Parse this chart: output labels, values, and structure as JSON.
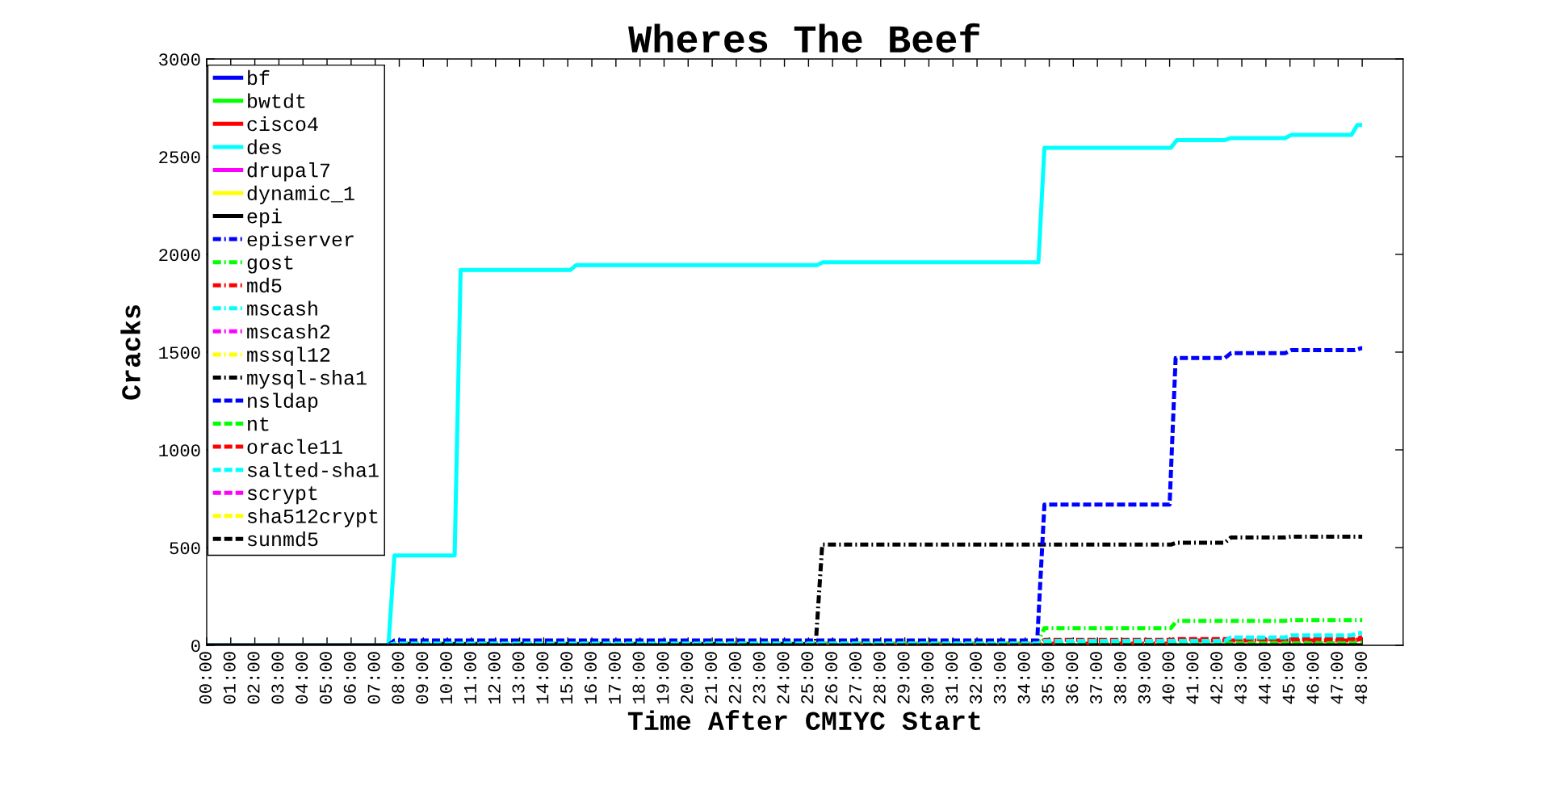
{
  "chart_data": {
    "type": "line",
    "title": "Wheres The Beef",
    "xlabel": "Time After CMIYC Start",
    "ylabel": "Cracks",
    "xlim": [
      0,
      49.7
    ],
    "ylim": [
      0,
      3000
    ],
    "yticks": [
      0,
      500,
      1000,
      1500,
      2000,
      2500,
      3000
    ],
    "xticks": [
      {
        "value": 0,
        "label": "00:00"
      },
      {
        "value": 1,
        "label": "01:00"
      },
      {
        "value": 2,
        "label": "02:00"
      },
      {
        "value": 3,
        "label": "03:00"
      },
      {
        "value": 4,
        "label": "04:00"
      },
      {
        "value": 5,
        "label": "05:00"
      },
      {
        "value": 6,
        "label": "06:00"
      },
      {
        "value": 7,
        "label": "07:00"
      },
      {
        "value": 8,
        "label": "08:00"
      },
      {
        "value": 9,
        "label": "09:00"
      },
      {
        "value": 10,
        "label": "10:00"
      },
      {
        "value": 11,
        "label": "11:00"
      },
      {
        "value": 12,
        "label": "12:00"
      },
      {
        "value": 13,
        "label": "13:00"
      },
      {
        "value": 14,
        "label": "14:00"
      },
      {
        "value": 15,
        "label": "15:00"
      },
      {
        "value": 16,
        "label": "16:00"
      },
      {
        "value": 17,
        "label": "17:00"
      },
      {
        "value": 18,
        "label": "18:00"
      },
      {
        "value": 19,
        "label": "19:00"
      },
      {
        "value": 20,
        "label": "20:00"
      },
      {
        "value": 21,
        "label": "21:00"
      },
      {
        "value": 22,
        "label": "22:00"
      },
      {
        "value": 23,
        "label": "23:00"
      },
      {
        "value": 24,
        "label": "24:00"
      },
      {
        "value": 25,
        "label": "25:00"
      },
      {
        "value": 26,
        "label": "26:00"
      },
      {
        "value": 27,
        "label": "27:00"
      },
      {
        "value": 28,
        "label": "28:00"
      },
      {
        "value": 29,
        "label": "29:00"
      },
      {
        "value": 30,
        "label": "30:00"
      },
      {
        "value": 31,
        "label": "31:00"
      },
      {
        "value": 32,
        "label": "32:00"
      },
      {
        "value": 33,
        "label": "33:00"
      },
      {
        "value": 34,
        "label": "34:00"
      },
      {
        "value": 35,
        "label": "35:00"
      },
      {
        "value": 36,
        "label": "36:00"
      },
      {
        "value": 37,
        "label": "37:00"
      },
      {
        "value": 38,
        "label": "38:00"
      },
      {
        "value": 39,
        "label": "39:00"
      },
      {
        "value": 40,
        "label": "40:00"
      },
      {
        "value": 41,
        "label": "41:00"
      },
      {
        "value": 42,
        "label": "42:00"
      },
      {
        "value": 43,
        "label": "43:00"
      },
      {
        "value": 44,
        "label": "44:00"
      },
      {
        "value": 45,
        "label": "45:00"
      },
      {
        "value": 46,
        "label": "46:00"
      },
      {
        "value": 47,
        "label": "47:00"
      },
      {
        "value": 48,
        "label": "48:00"
      }
    ],
    "legend": "top left",
    "series": [
      {
        "name": "bf",
        "color": "#0000ff",
        "line_style": "solid"
      },
      {
        "name": "bwtdt",
        "color": "#00ff00",
        "line_style": "solid"
      },
      {
        "name": "cisco4",
        "color": "#ff0000",
        "line_style": "solid"
      },
      {
        "name": "des",
        "color": "#00ffff",
        "line_style": "solid",
        "x": [
          0,
          7.55,
          7.8,
          10.3,
          10.55,
          15.1,
          15.35,
          25.35,
          25.6,
          34.55,
          34.8,
          40.05,
          40.3,
          42.3,
          42.55,
          44.8,
          45.05,
          47.55,
          47.8,
          48
        ],
        "values": [
          0,
          0,
          460,
          460,
          1920,
          1920,
          1945,
          1945,
          1960,
          1960,
          2545,
          2545,
          2585,
          2585,
          2595,
          2595,
          2611,
          2611,
          2662,
          2662
        ]
      },
      {
        "name": "drupal7",
        "color": "#ff00ff",
        "line_style": "solid"
      },
      {
        "name": "dynamic_1",
        "color": "#ffff00",
        "line_style": "solid"
      },
      {
        "name": "epi",
        "color": "#000000",
        "line_style": "solid",
        "x": [
          0,
          48
        ],
        "values": [
          0,
          0
        ]
      },
      {
        "name": "episerver",
        "color": "#0000ff",
        "line_style": "dashdot"
      },
      {
        "name": "gost",
        "color": "#00ff00",
        "line_style": "dashdot",
        "x": [
          7.55,
          7.8,
          34.5,
          34.8,
          40.05,
          40.3,
          44.8,
          45.05,
          48
        ],
        "values": [
          0,
          8,
          8,
          88,
          88,
          125,
          125,
          129,
          129
        ]
      },
      {
        "name": "md5",
        "color": "#ff0000",
        "line_style": "dashdot",
        "x": [
          7.55,
          34.5,
          34.8,
          40.05,
          40.3,
          47.7,
          48
        ],
        "values": [
          0,
          0,
          8,
          8,
          25,
          25,
          35
        ]
      },
      {
        "name": "mscash",
        "color": "#00ffff",
        "line_style": "dashdot"
      },
      {
        "name": "mscash2",
        "color": "#ff00ff",
        "line_style": "dashdot"
      },
      {
        "name": "mssql12",
        "color": "#ffff00",
        "line_style": "dashdot"
      },
      {
        "name": "mysql-sha1",
        "color": "#000000",
        "line_style": "dashdot",
        "x": [
          7.55,
          7.8,
          25.3,
          25.57,
          40.05,
          40.3,
          42.3,
          42.55,
          44.8,
          45.05,
          48
        ],
        "values": [
          0,
          5,
          5,
          515,
          515,
          525,
          525,
          552,
          552,
          556,
          556
        ]
      },
      {
        "name": "nsldap",
        "color": "#0000ff",
        "line_style": "dashed",
        "x": [
          7.55,
          7.8,
          34.5,
          34.8,
          40.0,
          40.25,
          42.3,
          42.55,
          44.8,
          45.05,
          47.7,
          47.95,
          48
        ],
        "values": [
          0,
          25,
          25,
          720,
          720,
          1470,
          1470,
          1495,
          1495,
          1510,
          1510,
          1520,
          1520
        ]
      },
      {
        "name": "nt",
        "color": "#00ff00",
        "line_style": "dashed",
        "x": [
          7.55,
          7.8,
          48
        ],
        "values": [
          0,
          8,
          10
        ]
      },
      {
        "name": "oracle11",
        "color": "#ff0000",
        "line_style": "dashed",
        "x": [
          7.55,
          34.5,
          34.8,
          40.05,
          40.3,
          47.7,
          48
        ],
        "values": [
          0,
          0,
          28,
          28,
          32,
          32,
          42
        ]
      },
      {
        "name": "salted-sha1",
        "color": "#00ffff",
        "line_style": "dashed",
        "x": [
          7.55,
          7.8,
          34.5,
          34.8,
          42.3,
          42.55,
          44.8,
          45.05,
          47.55,
          47.8,
          48
        ],
        "values": [
          0,
          8,
          8,
          23,
          23,
          40,
          40,
          50,
          50,
          63,
          63
        ]
      },
      {
        "name": "scrypt",
        "color": "#ff00ff",
        "line_style": "dashed"
      },
      {
        "name": "sha512crypt",
        "color": "#ffff00",
        "line_style": "dashed"
      },
      {
        "name": "sunmd5",
        "color": "#000000",
        "line_style": "dashed",
        "x": [
          7.55,
          48
        ],
        "values": [
          0,
          0
        ]
      }
    ]
  }
}
